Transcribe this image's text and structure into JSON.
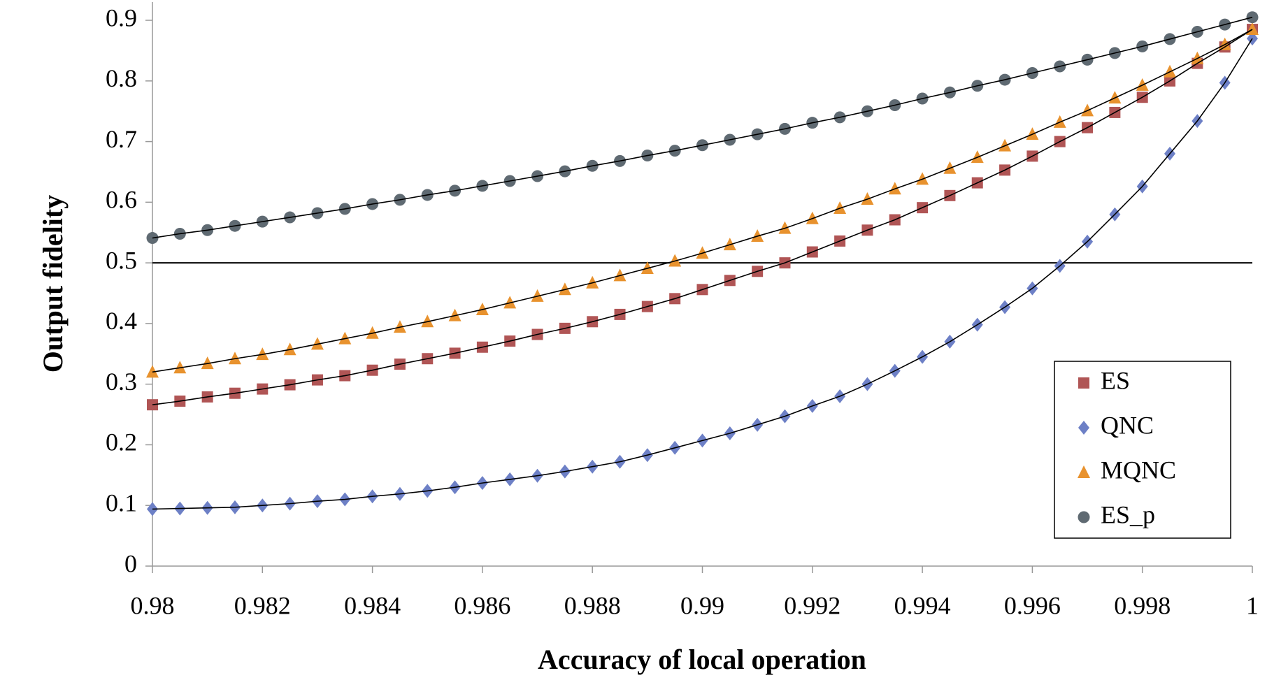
{
  "chart_data": {
    "type": "scatter",
    "x_label": "Accuracy of local operation",
    "y_label": "Output fidelity",
    "x": [
      0.98,
      0.9805,
      0.981,
      0.9815,
      0.982,
      0.9825,
      0.983,
      0.9835,
      0.984,
      0.9845,
      0.985,
      0.9855,
      0.986,
      0.9865,
      0.987,
      0.9875,
      0.988,
      0.9885,
      0.989,
      0.9895,
      0.99,
      0.9905,
      0.991,
      0.9915,
      0.992,
      0.9925,
      0.993,
      0.9935,
      0.994,
      0.9945,
      0.995,
      0.9955,
      0.996,
      0.9965,
      0.997,
      0.9975,
      0.998,
      0.9985,
      0.999,
      0.9995,
      1
    ],
    "series": [
      {
        "name": "ES",
        "color": "#b05555",
        "marker": "square",
        "values": [
          0.266,
          0.272,
          0.279,
          0.285,
          0.292,
          0.299,
          0.307,
          0.314,
          0.323,
          0.333,
          0.342,
          0.351,
          0.361,
          0.371,
          0.382,
          0.392,
          0.403,
          0.415,
          0.428,
          0.441,
          0.456,
          0.471,
          0.486,
          0.5,
          0.518,
          0.536,
          0.554,
          0.571,
          0.591,
          0.611,
          0.632,
          0.653,
          0.676,
          0.7,
          0.723,
          0.748,
          0.773,
          0.8,
          0.829,
          0.856,
          0.885
        ]
      },
      {
        "name": "QNC",
        "color": "#6d80c6",
        "marker": "diamond",
        "values": [
          0.094,
          0.095,
          0.096,
          0.097,
          0.1,
          0.103,
          0.107,
          0.11,
          0.115,
          0.119,
          0.124,
          0.13,
          0.137,
          0.143,
          0.149,
          0.156,
          0.164,
          0.172,
          0.183,
          0.195,
          0.207,
          0.219,
          0.233,
          0.247,
          0.264,
          0.28,
          0.3,
          0.322,
          0.345,
          0.37,
          0.398,
          0.427,
          0.458,
          0.495,
          0.535,
          0.58,
          0.626,
          0.68,
          0.734,
          0.797,
          0.87
        ]
      },
      {
        "name": "MQNC",
        "color": "#e8922e",
        "marker": "triangle",
        "values": [
          0.32,
          0.327,
          0.334,
          0.342,
          0.349,
          0.357,
          0.366,
          0.375,
          0.384,
          0.394,
          0.403,
          0.413,
          0.423,
          0.434,
          0.445,
          0.456,
          0.467,
          0.479,
          0.491,
          0.503,
          0.516,
          0.53,
          0.544,
          0.557,
          0.573,
          0.59,
          0.605,
          0.622,
          0.638,
          0.656,
          0.674,
          0.693,
          0.712,
          0.732,
          0.751,
          0.772,
          0.793,
          0.815,
          0.837,
          0.86,
          0.885
        ]
      },
      {
        "name": "ES_p",
        "color": "#5f6a72",
        "marker": "circle",
        "values": [
          0.541,
          0.548,
          0.554,
          0.561,
          0.568,
          0.575,
          0.582,
          0.589,
          0.597,
          0.604,
          0.612,
          0.619,
          0.627,
          0.635,
          0.643,
          0.651,
          0.66,
          0.668,
          0.677,
          0.685,
          0.694,
          0.703,
          0.712,
          0.721,
          0.731,
          0.74,
          0.75,
          0.76,
          0.771,
          0.781,
          0.792,
          0.802,
          0.813,
          0.824,
          0.835,
          0.846,
          0.857,
          0.869,
          0.881,
          0.893,
          0.905
        ]
      }
    ],
    "xlim": [
      0.98,
      1
    ],
    "xticks": [
      0.98,
      0.982,
      0.984,
      0.986,
      0.988,
      0.99,
      0.992,
      0.994,
      0.996,
      0.998,
      1
    ],
    "ylim": [
      0,
      0.93
    ],
    "yticks": [
      0,
      0.1,
      0.2,
      0.3,
      0.4,
      0.5,
      0.6,
      0.7,
      0.8,
      0.9
    ],
    "hline": 0.5,
    "trendline": true,
    "legend": "lower right"
  }
}
